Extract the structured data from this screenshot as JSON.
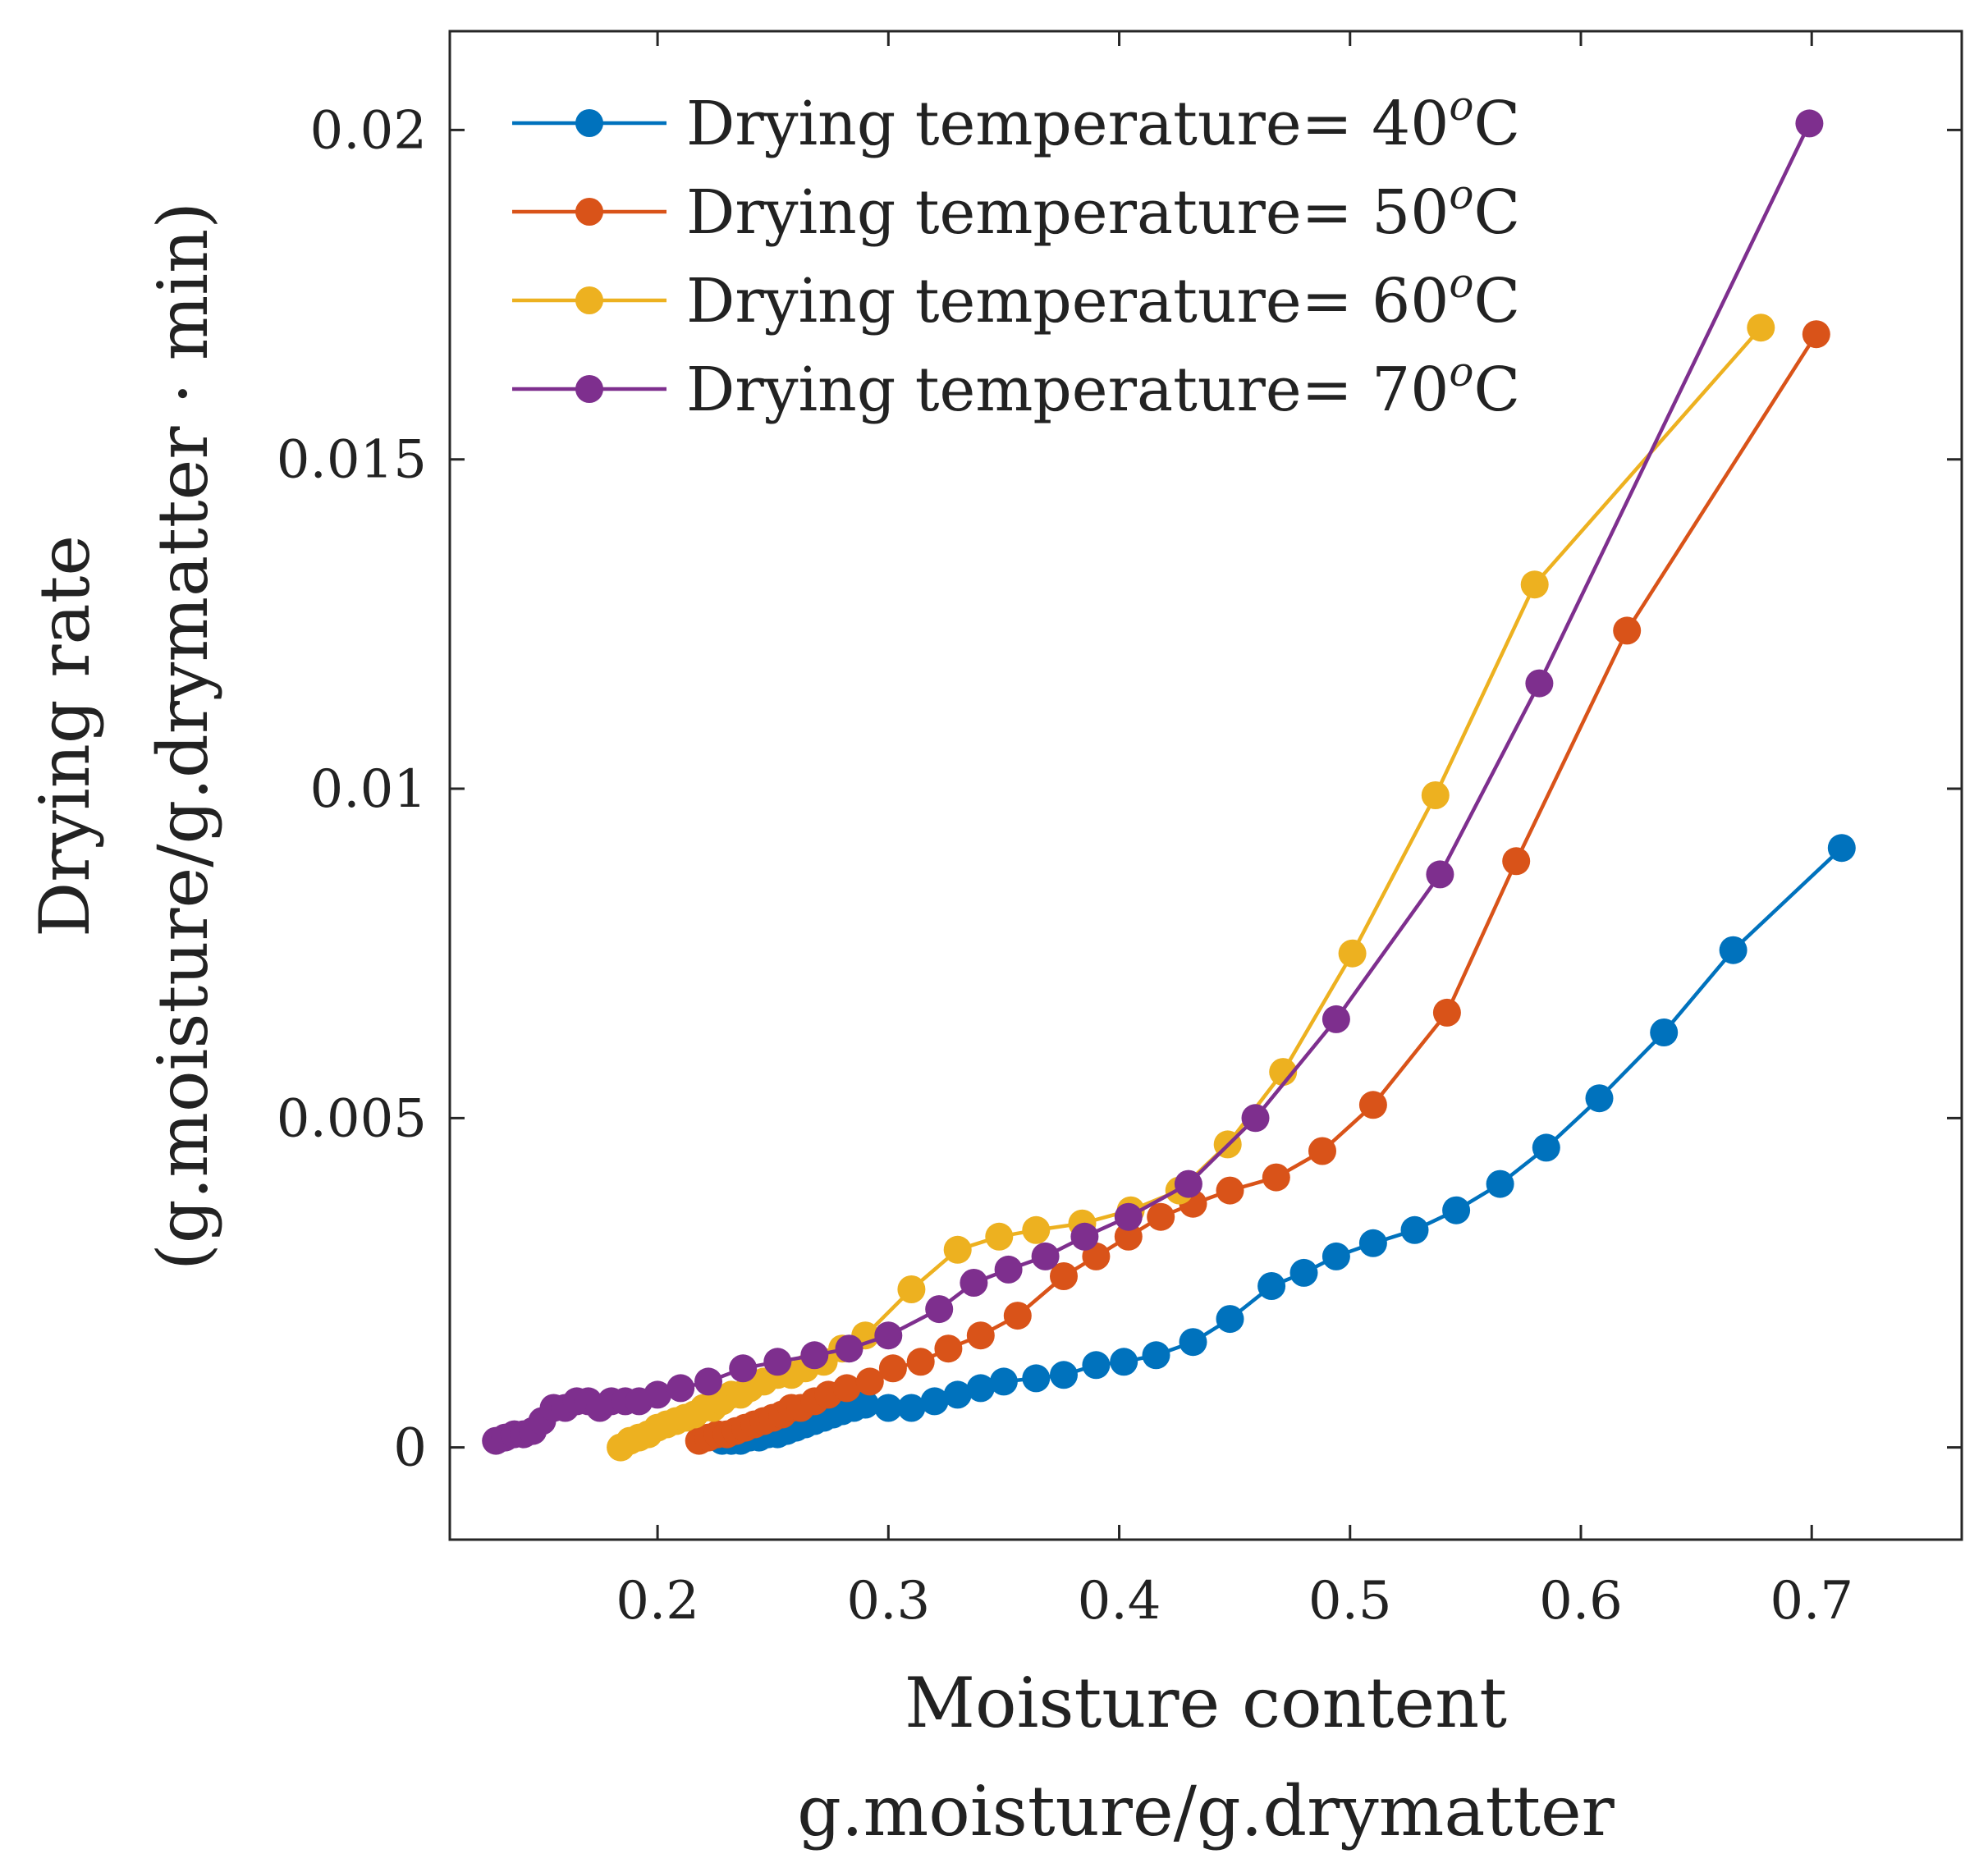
{
  "chart_data": {
    "type": "line",
    "xlabel": "Moisture content",
    "xlabel_line2": "g.moisture/g.drymatter",
    "ylabel": "Drying rate",
    "ylabel_line2": "(g.moisture/g.drymatter · min)",
    "xlim": [
      0.11,
      0.765
    ],
    "ylim": [
      -0.0014,
      0.0215
    ],
    "xticks": [
      0.2,
      0.3,
      0.4,
      0.5,
      0.6,
      0.7
    ],
    "xtick_labels": [
      "0.2",
      "0.3",
      "0.4",
      "0.5",
      "0.6",
      "0.7"
    ],
    "yticks": [
      0,
      0.005,
      0.01,
      0.015,
      0.02
    ],
    "ytick_labels": [
      "0",
      "0.005",
      "0.01",
      "0.015",
      "0.02"
    ],
    "grid": false,
    "legend_position": "top-left",
    "series": [
      {
        "name_prefix": "Drying temperature= 40",
        "name_sup": "o",
        "name_suffix": "C",
        "color": "#0072BD",
        "x": [
          0.228,
          0.232,
          0.236,
          0.24,
          0.244,
          0.248,
          0.252,
          0.256,
          0.26,
          0.264,
          0.268,
          0.272,
          0.276,
          0.28,
          0.285,
          0.29,
          0.3,
          0.31,
          0.32,
          0.33,
          0.34,
          0.35,
          0.364,
          0.376,
          0.39,
          0.402,
          0.416,
          0.432,
          0.448,
          0.466,
          0.48,
          0.494,
          0.51,
          0.528,
          0.546,
          0.565,
          0.585,
          0.608,
          0.636,
          0.666,
          0.713
        ],
        "y": [
          0.0001,
          0.0001,
          0.0001,
          0.00015,
          0.00015,
          0.0002,
          0.0002,
          0.00025,
          0.0003,
          0.00035,
          0.0004,
          0.00045,
          0.0005,
          0.00055,
          0.0006,
          0.00065,
          0.0006,
          0.0006,
          0.0007,
          0.0008,
          0.0009,
          0.001,
          0.00105,
          0.0011,
          0.00125,
          0.0013,
          0.0014,
          0.0016,
          0.00195,
          0.00245,
          0.00265,
          0.0029,
          0.0031,
          0.0033,
          0.0036,
          0.004,
          0.00455,
          0.0053,
          0.0063,
          0.00755,
          0.0091
        ]
      },
      {
        "name_prefix": "Drying temperature= 50",
        "name_sup": "o",
        "name_suffix": "C",
        "color": "#D95319",
        "x": [
          0.218,
          0.222,
          0.226,
          0.23,
          0.234,
          0.238,
          0.242,
          0.246,
          0.25,
          0.254,
          0.258,
          0.262,
          0.268,
          0.274,
          0.282,
          0.292,
          0.302,
          0.314,
          0.326,
          0.34,
          0.356,
          0.376,
          0.39,
          0.404,
          0.418,
          0.432,
          0.448,
          0.468,
          0.488,
          0.51,
          0.542,
          0.572,
          0.62,
          0.702
        ],
        "y": [
          0.0001,
          0.00015,
          0.0002,
          0.0002,
          0.00025,
          0.0003,
          0.00035,
          0.0004,
          0.00045,
          0.0005,
          0.0006,
          0.0006,
          0.0007,
          0.0008,
          0.0009,
          0.001,
          0.0012,
          0.0013,
          0.0015,
          0.0017,
          0.002,
          0.0026,
          0.0029,
          0.0032,
          0.0035,
          0.0037,
          0.0039,
          0.0041,
          0.0045,
          0.0052,
          0.0066,
          0.0089,
          0.0124,
          0.0169
        ]
      },
      {
        "name_prefix": "Drying temperature= 60",
        "name_sup": "o",
        "name_suffix": "C",
        "color": "#EDB120",
        "x": [
          0.184,
          0.188,
          0.192,
          0.196,
          0.2,
          0.204,
          0.208,
          0.212,
          0.216,
          0.22,
          0.224,
          0.228,
          0.232,
          0.236,
          0.24,
          0.246,
          0.252,
          0.258,
          0.264,
          0.272,
          0.28,
          0.29,
          0.31,
          0.33,
          0.348,
          0.364,
          0.384,
          0.405,
          0.426,
          0.447,
          0.471,
          0.501,
          0.537,
          0.58,
          0.678
        ],
        "y": [
          0.0,
          0.0001,
          0.00015,
          0.0002,
          0.0003,
          0.00035,
          0.0004,
          0.00045,
          0.0005,
          0.0006,
          0.0006,
          0.0007,
          0.0008,
          0.0008,
          0.0009,
          0.001,
          0.0011,
          0.0011,
          0.0012,
          0.0013,
          0.0015,
          0.0017,
          0.0024,
          0.003,
          0.0032,
          0.0033,
          0.0034,
          0.0036,
          0.0039,
          0.0046,
          0.0057,
          0.0075,
          0.0099,
          0.0131,
          0.017
        ]
      },
      {
        "name_prefix": "Drying temperature= 70",
        "name_sup": "o",
        "name_suffix": "C",
        "color": "#7E2F8E",
        "x": [
          0.13,
          0.134,
          0.138,
          0.142,
          0.146,
          0.15,
          0.155,
          0.16,
          0.165,
          0.17,
          0.175,
          0.18,
          0.186,
          0.192,
          0.2,
          0.21,
          0.222,
          0.237,
          0.252,
          0.268,
          0.283,
          0.3,
          0.322,
          0.337,
          0.352,
          0.368,
          0.385,
          0.404,
          0.43,
          0.459,
          0.494,
          0.539,
          0.582,
          0.699
        ],
        "y": [
          0.0001,
          0.00015,
          0.0002,
          0.0002,
          0.00025,
          0.0004,
          0.0006,
          0.0006,
          0.0007,
          0.0007,
          0.0006,
          0.0007,
          0.0007,
          0.0007,
          0.0008,
          0.0009,
          0.001,
          0.0012,
          0.0013,
          0.0014,
          0.0015,
          0.0017,
          0.0021,
          0.0025,
          0.0027,
          0.0029,
          0.0032,
          0.0035,
          0.004,
          0.005,
          0.0065,
          0.0087,
          0.0116,
          0.0201
        ]
      }
    ]
  }
}
